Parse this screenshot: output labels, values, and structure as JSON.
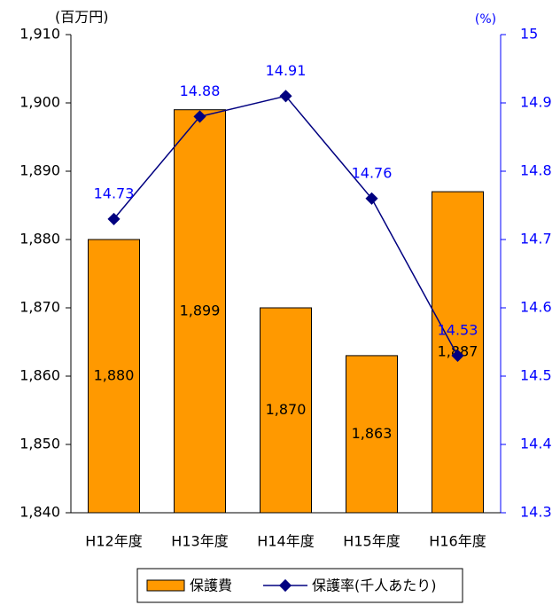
{
  "chart_data": {
    "type": "bar",
    "y_unit_label": "(百万円)",
    "y2_unit_label": "(%)",
    "categories": [
      "H12年度",
      "H13年度",
      "H14年度",
      "H15年度",
      "H16年度"
    ],
    "series": [
      {
        "name": "保護費",
        "color": "#ff9900",
        "values": [
          1880,
          1899,
          1870,
          1863,
          1887
        ],
        "value_labels": [
          "1,880",
          "1,899",
          "1,870",
          "1,863",
          "1,887"
        ]
      },
      {
        "name": "保護率(千人あたり)",
        "type": "line",
        "axis": "y2",
        "color": "#000080",
        "values": [
          14.73,
          14.88,
          14.91,
          14.76,
          14.53
        ]
      }
    ],
    "ylim": [
      1840,
      1910
    ],
    "yticks": [
      {
        "value": 1840,
        "label": "1,840"
      },
      {
        "value": 1850,
        "label": "1,850"
      },
      {
        "value": 1860,
        "label": "1,860"
      },
      {
        "value": 1870,
        "label": "1,870"
      },
      {
        "value": 1880,
        "label": "1,880"
      },
      {
        "value": 1890,
        "label": "1,890"
      },
      {
        "value": 1900,
        "label": "1,900"
      },
      {
        "value": 1910,
        "label": "1,910"
      }
    ],
    "y2lim": [
      14.3,
      15
    ],
    "y2ticks": [
      14.3,
      14.4,
      14.5,
      14.6,
      14.7,
      14.8,
      14.9,
      15
    ],
    "legend": "bottom"
  }
}
